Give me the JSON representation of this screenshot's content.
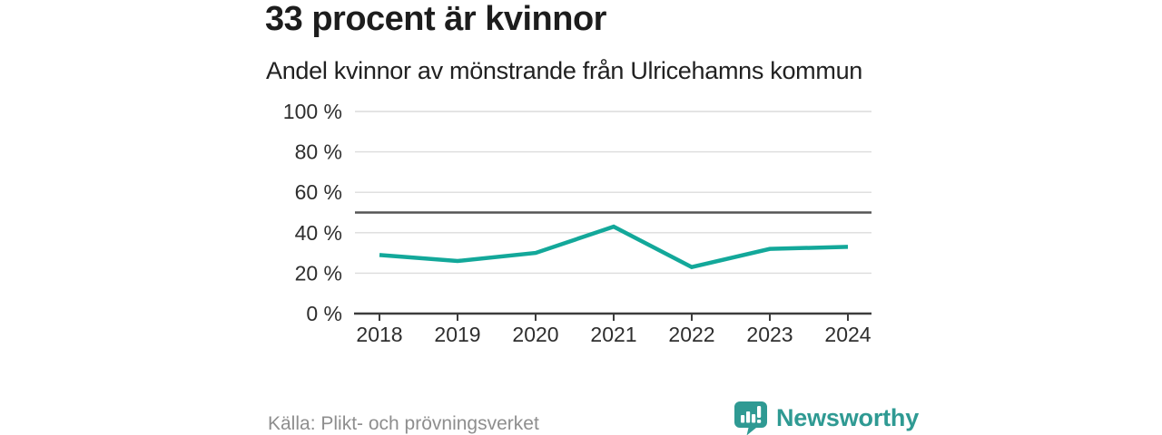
{
  "header": {
    "title": "33 procent är kvinnor",
    "subtitle": "Andel kvinnor av mönstrande från Ulricehamns kommun"
  },
  "chart_data": {
    "type": "line",
    "title": "33 procent är kvinnor",
    "subtitle": "Andel kvinnor av mönstrande från Ulricehamns kommun",
    "x": [
      "2018",
      "2019",
      "2020",
      "2021",
      "2022",
      "2023",
      "2024"
    ],
    "values": [
      29,
      26,
      30,
      43,
      23,
      32,
      33
    ],
    "unit": "%",
    "ylim": [
      0,
      100
    ],
    "yticks": [
      0,
      20,
      40,
      60,
      80,
      100
    ],
    "ytick_labels": [
      "0 %",
      "20 %",
      "40 %",
      "60 %",
      "80 %",
      "100 %"
    ],
    "reference_line": 50,
    "grid": true,
    "legend": "none"
  },
  "footer": {
    "source": "Källa: Plikt- och prövningsverket",
    "brand": "Newsworthy"
  },
  "colors": {
    "accent": "#13a89a",
    "brand": "#2f9a93",
    "grid": "#dcdcdc",
    "reference": "#555555",
    "axis": "#3c3c3c",
    "title_text": "#1d1d1d",
    "muted_text": "#8e8e8e"
  }
}
